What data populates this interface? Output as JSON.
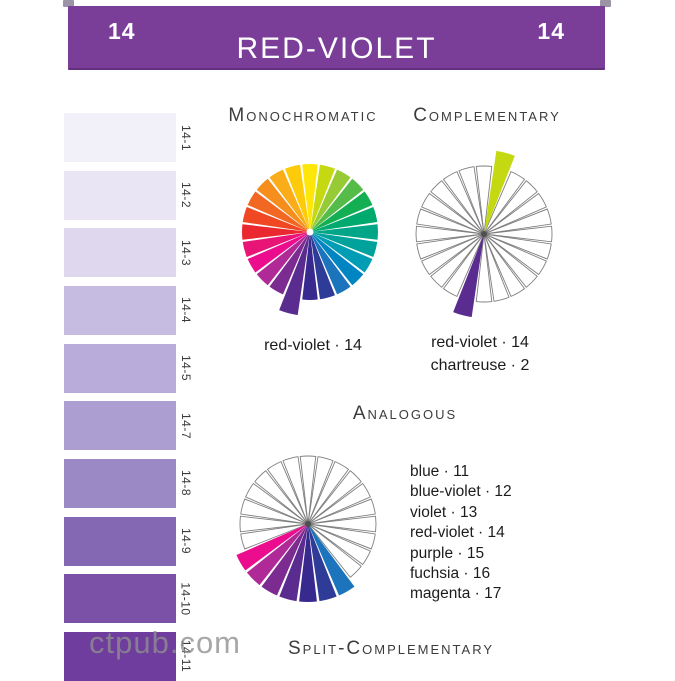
{
  "header": {
    "page_number_left": "14",
    "page_number_right": "14",
    "title": "RED-VIOLET",
    "background_color": "#7b3e98"
  },
  "swatches": [
    {
      "label": "14-1",
      "color": "#f2f0f9"
    },
    {
      "label": "14-2",
      "color": "#e9e5f4"
    },
    {
      "label": "14-3",
      "color": "#ded7ee"
    },
    {
      "label": "14-4",
      "color": "#c6bce2"
    },
    {
      "label": "14-5",
      "color": "#b9acda"
    },
    {
      "label": "14-7",
      "color": "#ac9ed1"
    },
    {
      "label": "14-8",
      "color": "#9b89c5"
    },
    {
      "label": "14-9",
      "color": "#8568b3"
    },
    {
      "label": "14-10",
      "color": "#7a51a7"
    },
    {
      "label": "14-11",
      "color": "#6f3d9d"
    }
  ],
  "sections": {
    "monochromatic": {
      "heading": "Monochromatic",
      "caption": "red-violet · 14"
    },
    "complementary": {
      "heading": "Complementary",
      "caption_lines": [
        "red-violet · 14",
        "chartreuse · 2"
      ]
    },
    "analogous": {
      "heading": "Analogous",
      "items": [
        "blue · 11",
        "blue-violet · 12",
        "violet · 13",
        "red-violet  · 14",
        "purple · 15",
        "fuchsia · 16",
        "magenta · 17"
      ]
    },
    "split_complementary": {
      "heading": "Split-Complementary"
    }
  },
  "wheels": {
    "segment_count": 24,
    "palette": [
      "#ffe60a",
      "#c5d912",
      "#96cb36",
      "#55bc49",
      "#14af52",
      "#00a96d",
      "#00a687",
      "#00a29b",
      "#009db4",
      "#0085c3",
      "#1c75bc",
      "#2e3b97",
      "#38298f",
      "#5b2c90",
      "#7c2b90",
      "#b02a97",
      "#eb0d8d",
      "#e81577",
      "#e9292f",
      "#ef4823",
      "#f26822",
      "#f68e1e",
      "#faad18",
      "#fecb0a"
    ],
    "monochromatic": {
      "style": "full",
      "extended_segments": [
        14
      ]
    },
    "complementary": {
      "style": "outline",
      "colored_segments": [
        2,
        14
      ],
      "extended_segments": [
        2,
        14
      ]
    },
    "analogous": {
      "style": "outline",
      "colored_segments": [
        11,
        12,
        13,
        14,
        15,
        16,
        17
      ],
      "extended_segments": [
        11,
        12,
        13,
        14,
        15,
        16,
        17
      ]
    }
  },
  "watermark": "ctpub.com"
}
